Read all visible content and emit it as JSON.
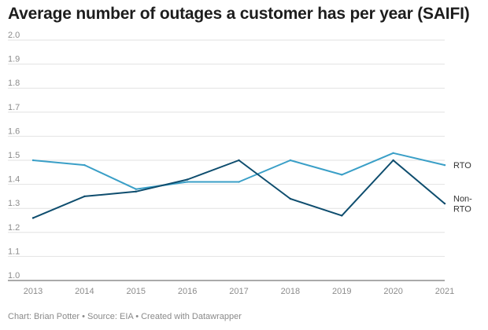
{
  "chart_data": {
    "type": "line",
    "title": "Average number of outages a customer has per year (SAIFI)",
    "xlabel": "",
    "ylabel": "",
    "x": [
      2013,
      2014,
      2015,
      2016,
      2017,
      2018,
      2019,
      2020,
      2021
    ],
    "x_tick_labels": [
      "2013",
      "2014",
      "2015",
      "2016",
      "2017",
      "2018",
      "2019",
      "2020",
      "2021"
    ],
    "ylim": [
      1.0,
      2.0
    ],
    "y_ticks": [
      "1.0",
      "1.1",
      "1.2",
      "1.3",
      "1.4",
      "1.5",
      "1.6",
      "1.7",
      "1.8",
      "1.9",
      "2.0"
    ],
    "grid": true,
    "series": [
      {
        "name": "RTO",
        "label_lines": [
          "RTO"
        ],
        "color": "#3a9fc7",
        "values": [
          1.5,
          1.48,
          1.38,
          1.41,
          1.41,
          1.5,
          1.44,
          1.53,
          1.48
        ]
      },
      {
        "name": "Non-RTO",
        "label_lines": [
          "Non-",
          "RTO"
        ],
        "color": "#0e4d6e",
        "values": [
          1.26,
          1.35,
          1.37,
          1.42,
          1.5,
          1.34,
          1.27,
          1.5,
          1.32
        ]
      }
    ]
  },
  "footer": {
    "credit": "Chart: Brian Potter • Source: EIA • Created with Datawrapper"
  }
}
